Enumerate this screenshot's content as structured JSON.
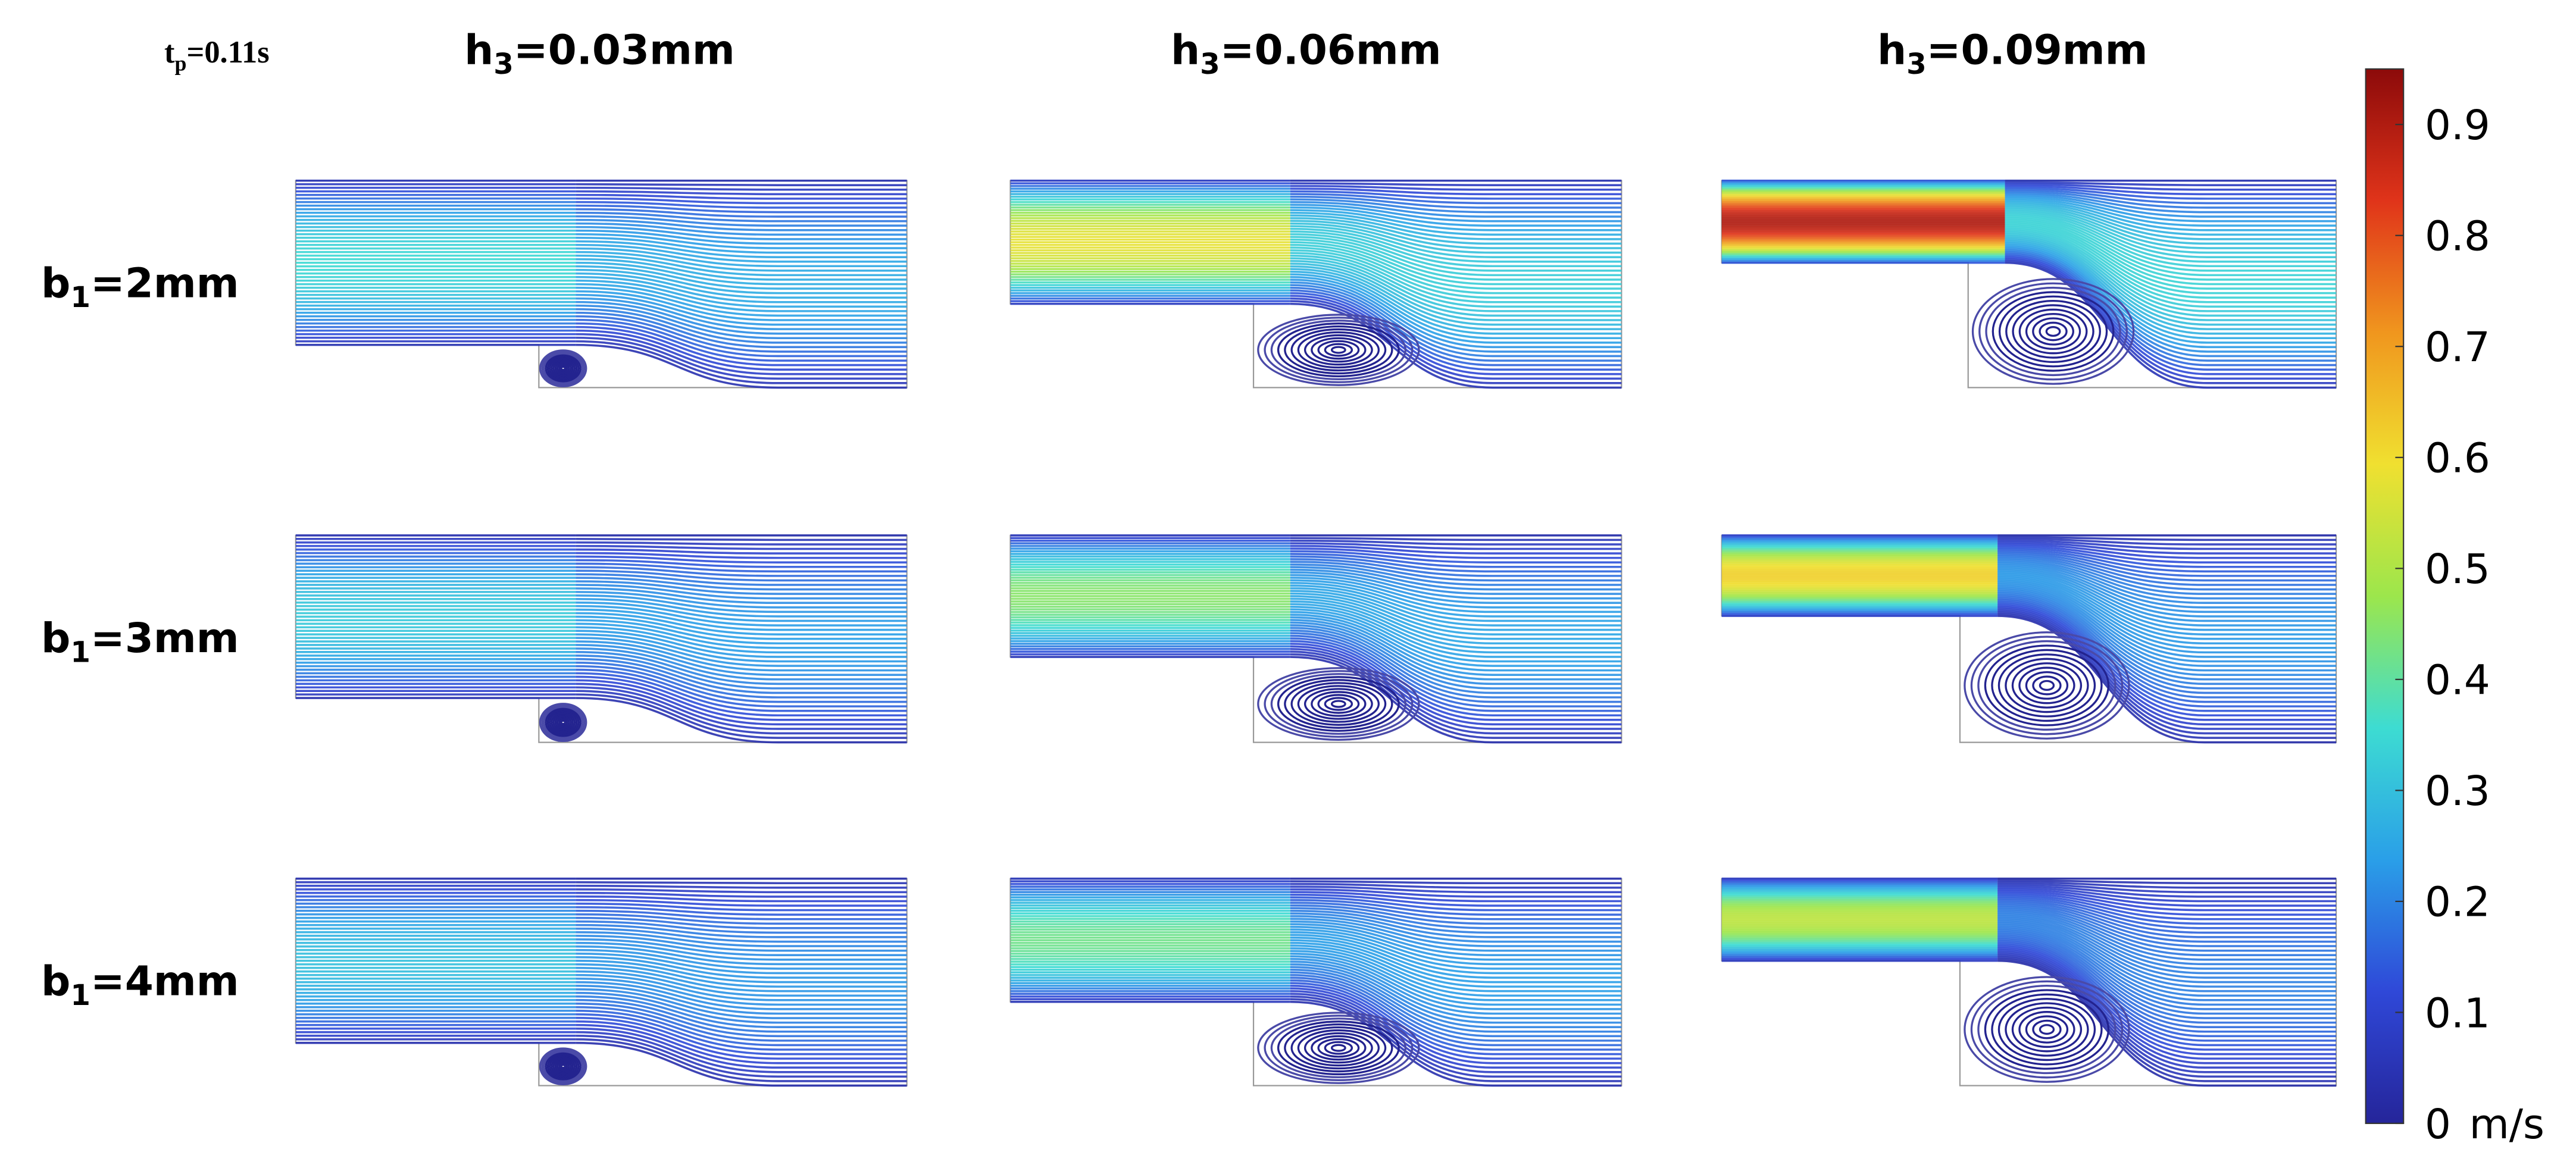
{
  "time_label": {
    "symbol": "t",
    "subscript": "p",
    "value": "=0.11s"
  },
  "columns": [
    {
      "symbol": "h",
      "subscript": "3",
      "value": "=0.03mm"
    },
    {
      "symbol": "h",
      "subscript": "3",
      "value": "=0.06mm"
    },
    {
      "symbol": "h",
      "subscript": "3",
      "value": "=0.09mm"
    }
  ],
  "rows": [
    {
      "symbol": "b",
      "subscript": "1",
      "value": "=2mm"
    },
    {
      "symbol": "b",
      "subscript": "1",
      "value": "=3mm"
    },
    {
      "symbol": "b",
      "subscript": "1",
      "value": "=4mm"
    }
  ],
  "colorbar": {
    "range": [
      0,
      0.95
    ],
    "ticks": [
      0,
      0.1,
      0.2,
      0.3,
      0.4,
      0.5,
      0.6,
      0.7,
      0.8,
      0.9
    ],
    "unit": "m/s",
    "colors": [
      "#25259a",
      "#2f48d8",
      "#2a9fe8",
      "#3ddcd2",
      "#9ce64c",
      "#f0e030",
      "#f0961e",
      "#e0341a",
      "#8c0a0a"
    ]
  }
}
